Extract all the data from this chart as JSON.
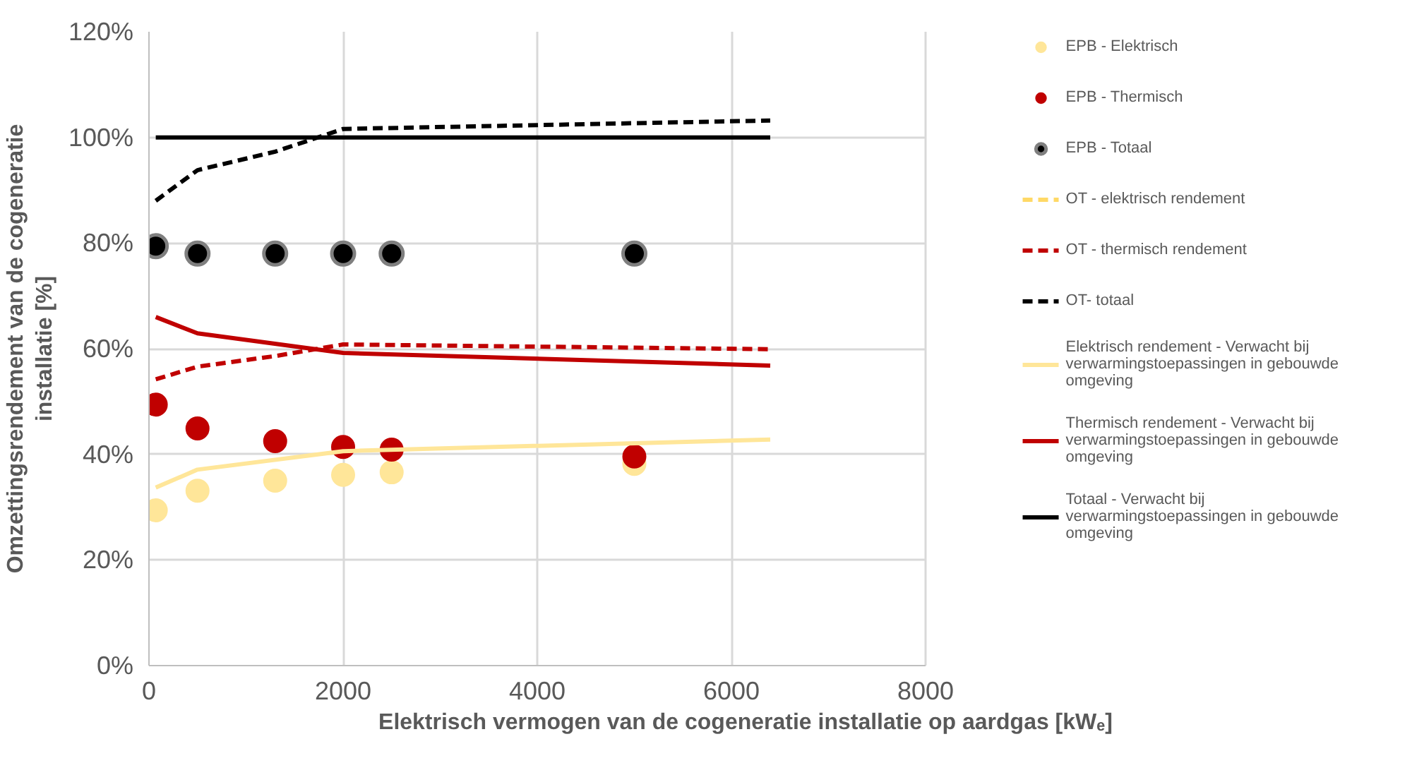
{
  "chart_data": {
    "type": "line",
    "xlabel": "Elektrisch vermogen van de cogeneratie installatie op aardgas [kWₑ]",
    "ylabel": "Omzettingsrendement van de cogeneratie installatie [%]",
    "xlim": [
      0,
      8000
    ],
    "xticks": [
      0,
      2000,
      4000,
      6000,
      8000
    ],
    "ylim": [
      0,
      120
    ],
    "yticks": [
      {
        "value": 0,
        "label": "0%"
      },
      {
        "value": 20,
        "label": "20%"
      },
      {
        "value": 40,
        "label": "40%"
      },
      {
        "value": 60,
        "label": "60%"
      },
      {
        "value": 80,
        "label": "80%"
      },
      {
        "value": 100,
        "label": "100%"
      },
      {
        "value": 120,
        "label": "120%"
      }
    ],
    "grid": true,
    "legend": "right",
    "series": [
      {
        "name": "EPB - Elektrisch",
        "type": "scatter",
        "marker": "circle",
        "color": "#ffe699",
        "x": [
          70,
          500,
          1300,
          2000,
          2500,
          5000
        ],
        "values": [
          29.4,
          33.1,
          35.0,
          36.1,
          36.6,
          38.2
        ]
      },
      {
        "name": "EPB - Thermisch",
        "type": "scatter",
        "marker": "circle",
        "color": "#c00000",
        "x": [
          70,
          500,
          1300,
          2000,
          2500,
          5000
        ],
        "values": [
          49.4,
          44.9,
          42.5,
          41.4,
          40.9,
          39.6
        ]
      },
      {
        "name": "EPB - Totaal",
        "type": "scatter",
        "marker": "circle",
        "color": "#000000",
        "x": [
          70,
          500,
          1300,
          2000,
          2500,
          5000
        ],
        "values": [
          79.4,
          78.0,
          78.0,
          78.0,
          78.0,
          78.0
        ]
      },
      {
        "name": "OT - elektrisch rendement",
        "line_style": "dashed",
        "color": "#ffd966",
        "values": [
          null,
          null,
          null,
          null,
          null
        ]
      },
      {
        "name": "OT - thermisch rendement",
        "line_style": "dashed",
        "color": "#c00000",
        "x": [
          70,
          500,
          1300,
          2000,
          6400
        ],
        "values": [
          54.2,
          56.6,
          58.6,
          60.8,
          59.9
        ]
      },
      {
        "name": "OT- totaal",
        "line_style": "dashed",
        "color": "#000000",
        "x": [
          70,
          500,
          1300,
          2000,
          6400
        ],
        "values": [
          88.0,
          93.8,
          97.3,
          101.6,
          103.2
        ]
      },
      {
        "name": "Elektrisch rendement - Verwacht bij verwarmingstoepassingen in gebouwde omgeving",
        "line_style": "solid",
        "color": "#ffe699",
        "x": [
          70,
          500,
          2000,
          6400
        ],
        "values": [
          33.7,
          37.1,
          40.6,
          42.8
        ]
      },
      {
        "name": "Thermisch rendement - Verwacht bij verwarmingstoepassingen in gebouwde omgeving",
        "line_style": "solid",
        "color": "#c00000",
        "x": [
          70,
          500,
          2000,
          6400
        ],
        "values": [
          66.0,
          62.9,
          59.2,
          56.8
        ]
      },
      {
        "name": "Totaal - Verwacht bij verwarmingstoepassingen in gebouwde omgeving",
        "line_style": "solid",
        "color": "#000000",
        "x": [
          70,
          6400
        ],
        "values": [
          100,
          100
        ]
      }
    ]
  }
}
